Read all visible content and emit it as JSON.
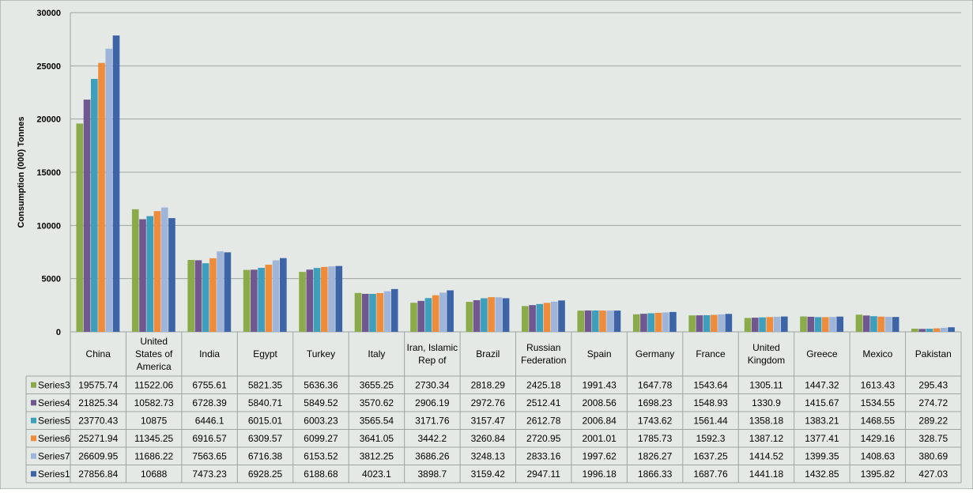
{
  "chart_data": {
    "type": "bar",
    "title": "",
    "xlabel": "",
    "ylabel": "Consumption (000) Tonnes",
    "ylim": [
      0,
      30000
    ],
    "yticks": [
      "0",
      "5000",
      "10000",
      "15000",
      "20000",
      "25000",
      "30000"
    ],
    "grid": true,
    "legend_placement": "data-table",
    "categories": [
      "China",
      "United States of America",
      "India",
      "Egypt",
      "Turkey",
      "Italy",
      "Iran, Islamic Rep of",
      "Brazil",
      "Russian Federation",
      "Spain",
      "Germany",
      "France",
      "United Kingdom",
      "Greece",
      "Mexico",
      "Pakistan"
    ],
    "category_lines": [
      [
        "China"
      ],
      [
        "United",
        "States of",
        "America"
      ],
      [
        "India"
      ],
      [
        "Egypt"
      ],
      [
        "Turkey"
      ],
      [
        "Italy"
      ],
      [
        "Iran, Islamic",
        "Rep of"
      ],
      [
        "Brazil"
      ],
      [
        "Russian",
        "Federation"
      ],
      [
        "Spain"
      ],
      [
        "Germany"
      ],
      [
        "France"
      ],
      [
        "United",
        "Kingdom"
      ],
      [
        "Greece"
      ],
      [
        "Mexico"
      ],
      [
        "Pakistan"
      ]
    ],
    "series": [
      {
        "name": "Series3",
        "color": "#8bab4b",
        "values": [
          19575.74,
          11522.06,
          6755.61,
          5821.35,
          5636.36,
          3655.25,
          2730.34,
          2818.29,
          2425.18,
          1991.43,
          1647.78,
          1543.64,
          1305.11,
          1447.32,
          1613.43,
          295.43
        ],
        "labels": [
          "19575.74",
          "11522.06",
          "6755.61",
          "5821.35",
          "5636.36",
          "3655.25",
          "2730.34",
          "2818.29",
          "2425.18",
          "1991.43",
          "1647.78",
          "1543.64",
          "1305.11",
          "1447.32",
          "1613.43",
          "295.43"
        ]
      },
      {
        "name": "Series4",
        "color": "#71578f",
        "values": [
          21825.34,
          10582.73,
          6728.39,
          5840.71,
          5849.52,
          3570.62,
          2906.19,
          2972.76,
          2512.41,
          2008.56,
          1698.23,
          1548.93,
          1330.9,
          1415.67,
          1534.55,
          274.72
        ],
        "labels": [
          "21825.34",
          "10582.73",
          "6728.39",
          "5840.71",
          "5849.52",
          "3570.62",
          "2906.19",
          "2972.76",
          "2512.41",
          "2008.56",
          "1698.23",
          "1548.93",
          "1330.9",
          "1415.67",
          "1534.55",
          "274.72"
        ]
      },
      {
        "name": "Series5",
        "color": "#3d9fbb",
        "values": [
          23770.43,
          10875,
          6446.1,
          6015.01,
          6003.23,
          3565.54,
          3171.76,
          3157.47,
          2612.78,
          2006.84,
          1743.62,
          1561.44,
          1358.18,
          1383.21,
          1468.55,
          289.22
        ],
        "labels": [
          "23770.43",
          "10875",
          "6446.1",
          "6015.01",
          "6003.23",
          "3565.54",
          "3171.76",
          "3157.47",
          "2612.78",
          "2006.84",
          "1743.62",
          "1561.44",
          "1358.18",
          "1383.21",
          "1468.55",
          "289.22"
        ]
      },
      {
        "name": "Series6",
        "color": "#ef8c3c",
        "values": [
          25271.94,
          11345.25,
          6916.57,
          6309.57,
          6099.27,
          3641.05,
          3442.2,
          3260.84,
          2720.95,
          2001.01,
          1785.73,
          1592.3,
          1387.12,
          1377.41,
          1429.16,
          328.75
        ],
        "labels": [
          "25271.94",
          "11345.25",
          "6916.57",
          "6309.57",
          "6099.27",
          "3641.05",
          "3442.2",
          "3260.84",
          "2720.95",
          "2001.01",
          "1785.73",
          "1592.3",
          "1387.12",
          "1377.41",
          "1429.16",
          "328.75"
        ]
      },
      {
        "name": "Series7",
        "color": "#9fb4d9",
        "values": [
          26609.95,
          11686.22,
          7563.65,
          6716.38,
          6153.52,
          3812.25,
          3686.26,
          3248.13,
          2833.16,
          1997.62,
          1826.27,
          1637.25,
          1414.52,
          1399.35,
          1408.63,
          380.69
        ],
        "labels": [
          "26609.95",
          "11686.22",
          "7563.65",
          "6716.38",
          "6153.52",
          "3812.25",
          "3686.26",
          "3248.13",
          "2833.16",
          "1997.62",
          "1826.27",
          "1637.25",
          "1414.52",
          "1399.35",
          "1408.63",
          "380.69"
        ]
      },
      {
        "name": "Series1",
        "color": "#3c64a6",
        "values": [
          27856.84,
          10688,
          7473.23,
          6928.25,
          6188.68,
          4023.1,
          3898.7,
          3159.42,
          2947.11,
          1996.18,
          1866.33,
          1687.76,
          1441.18,
          1432.85,
          1395.82,
          427.03
        ],
        "labels": [
          "27856.84",
          "10688",
          "7473.23",
          "6928.25",
          "6188.68",
          "4023.1",
          "3898.7",
          "3159.42",
          "2947.11",
          "1996.18",
          "1866.33",
          "1687.76",
          "1441.18",
          "1432.85",
          "1395.82",
          "427.03"
        ]
      }
    ],
    "colors": {
      "background": "#e4e9e5",
      "gridline": "#9ea5a0",
      "table_border": "#9ea5a0",
      "text": "#000000"
    }
  }
}
